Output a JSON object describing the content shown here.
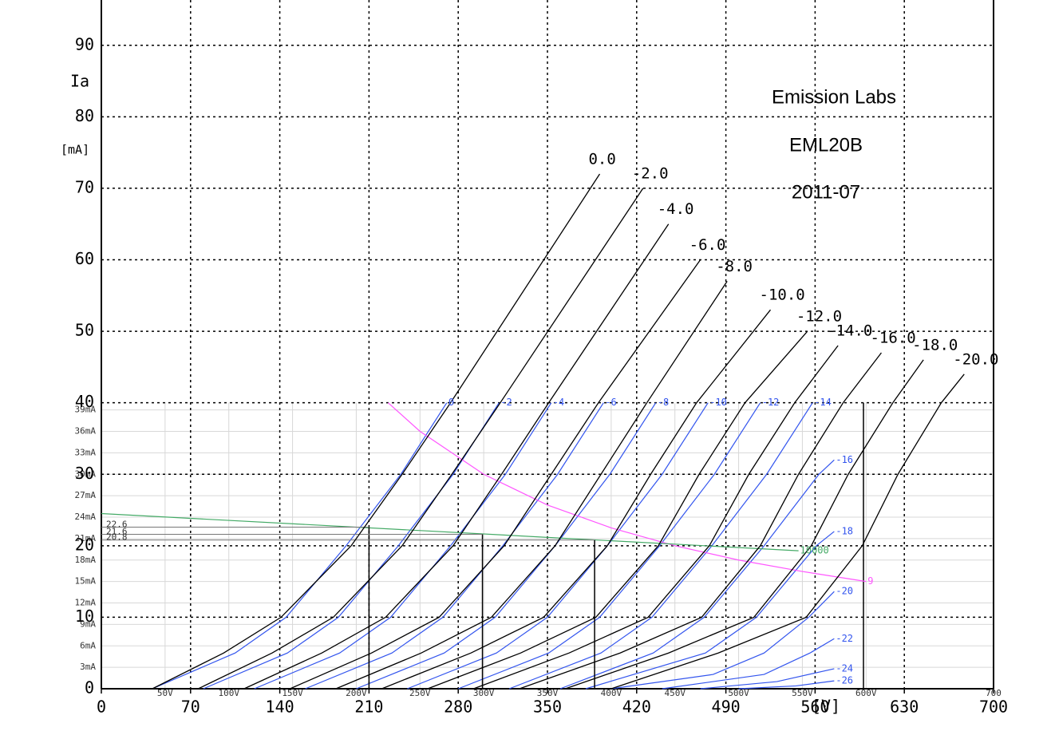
{
  "chart_data": [
    {
      "type": "line",
      "title": "Emission Labs",
      "subtitle": "EML20B",
      "date": "2011-07",
      "ylabel": "Ia",
      "yunit": "[mA]",
      "xunit": "[V]",
      "xlim": [
        0,
        700
      ],
      "ylim": [
        0,
        96
      ],
      "xticks": [
        0,
        70,
        140,
        210,
        280,
        350,
        420,
        490,
        560,
        630,
        700
      ],
      "yticks": [
        0,
        10,
        20,
        30,
        40,
        50,
        60,
        70,
        80,
        90
      ],
      "grid": true,
      "series": [
        {
          "name": "0.0",
          "color": "#000000",
          "x": [
            40,
            96,
            141,
            196,
            236,
            274,
            391
          ],
          "values": [
            0,
            5,
            10,
            20,
            30,
            40,
            72
          ]
        },
        {
          "name": "-2.0",
          "color": "#000000",
          "x": [
            76,
            134,
            182,
            236,
            275,
            313,
            425
          ],
          "values": [
            0,
            5,
            10,
            20,
            30,
            40,
            70
          ]
        },
        {
          "name": "-4.0",
          "color": "#000000",
          "x": [
            112,
            173,
            223,
            276,
            314,
            351,
            445
          ],
          "values": [
            0,
            5,
            10,
            20,
            30,
            40,
            65
          ]
        },
        {
          "name": "-6.0",
          "color": "#000000",
          "x": [
            148,
            212,
            265,
            316,
            353,
            390,
            470
          ],
          "values": [
            0,
            5,
            10,
            20,
            30,
            40,
            60
          ]
        },
        {
          "name": "-8.0",
          "color": "#000000",
          "x": [
            184,
            251,
            306,
            356,
            392,
            428,
            491
          ],
          "values": [
            0,
            5,
            10,
            20,
            30,
            40,
            57
          ]
        },
        {
          "name": "-10.0",
          "color": "#000000",
          "x": [
            220,
            290,
            347,
            397,
            431,
            467,
            525
          ],
          "values": [
            0,
            5,
            10,
            20,
            30,
            40,
            53
          ]
        },
        {
          "name": "-12.0",
          "color": "#000000",
          "x": [
            256,
            329,
            388,
            437,
            469,
            505,
            554
          ],
          "values": [
            0,
            5,
            10,
            20,
            30,
            40,
            50
          ]
        },
        {
          "name": "-14.0",
          "color": "#000000",
          "x": [
            292,
            367,
            429,
            477,
            508,
            544,
            578
          ],
          "values": [
            0,
            5,
            10,
            20,
            30,
            40,
            48
          ]
        },
        {
          "name": "-16.0",
          "color": "#000000",
          "x": [
            328,
            407,
            471,
            517,
            547,
            582,
            612
          ],
          "values": [
            0,
            5,
            10,
            20,
            30,
            40,
            47
          ]
        },
        {
          "name": "-18.0",
          "color": "#000000",
          "x": [
            364,
            445,
            512,
            557,
            586,
            621,
            645
          ],
          "values": [
            0,
            5,
            10,
            20,
            30,
            40,
            46
          ]
        },
        {
          "name": "-20.0",
          "color": "#000000",
          "x": [
            400,
            484,
            553,
            597,
            625,
            659,
            677
          ],
          "values": [
            0,
            5,
            10,
            20,
            30,
            40,
            44
          ]
        }
      ]
    },
    {
      "type": "line",
      "xlim": [
        0,
        700
      ],
      "ylim": [
        0,
        40
      ],
      "xticks": [
        {
          "value": 50,
          "label": "50V"
        },
        {
          "value": 100,
          "label": "100V"
        },
        {
          "value": 150,
          "label": "150V"
        },
        {
          "value": 200,
          "label": "200V"
        },
        {
          "value": 250,
          "label": "250V"
        },
        {
          "value": 300,
          "label": "300V"
        },
        {
          "value": 350,
          "label": "350V"
        },
        {
          "value": 400,
          "label": "400V"
        },
        {
          "value": 450,
          "label": "450V"
        },
        {
          "value": 500,
          "label": "500V"
        },
        {
          "value": 550,
          "label": "550V"
        },
        {
          "value": 600,
          "label": "600V"
        },
        {
          "value": 700,
          "label": "700"
        }
      ],
      "yticks": [
        {
          "value": 3,
          "label": "3mA"
        },
        {
          "value": 6,
          "label": "6mA"
        },
        {
          "value": 9,
          "label": "9mA"
        },
        {
          "value": 12,
          "label": "12mA"
        },
        {
          "value": 15,
          "label": "15mA"
        },
        {
          "value": 18,
          "label": "18mA"
        },
        {
          "value": 21,
          "label": "21mA"
        },
        {
          "value": 24,
          "label": "24mA"
        },
        {
          "value": 27,
          "label": "27mA"
        },
        {
          "value": 30,
          "label": "30mA"
        },
        {
          "value": 33,
          "label": "33mA"
        },
        {
          "value": 36,
          "label": "36mA"
        },
        {
          "value": 39,
          "label": "39mA"
        }
      ],
      "grid": true,
      "series": [
        {
          "name": "0",
          "color": "#3355ee",
          "x": [
            40,
            105,
            145,
            192,
            235,
            271
          ],
          "values": [
            0,
            5,
            10,
            20,
            30,
            40
          ]
        },
        {
          "name": "-2",
          "color": "#3355ee",
          "x": [
            80,
            146,
            186,
            233,
            276,
            312
          ],
          "values": [
            0,
            5,
            10,
            20,
            30,
            40
          ]
        },
        {
          "name": "-4",
          "color": "#3355ee",
          "x": [
            120,
            187,
            227,
            274,
            317,
            353
          ],
          "values": [
            0,
            5,
            10,
            20,
            30,
            40
          ]
        },
        {
          "name": "-6",
          "color": "#3355ee",
          "x": [
            160,
            228,
            268,
            315,
            358,
            394
          ],
          "values": [
            0,
            5,
            10,
            20,
            30,
            40
          ]
        },
        {
          "name": "-8",
          "color": "#3355ee",
          "x": [
            200,
            269,
            309,
            356,
            399,
            435
          ],
          "values": [
            0,
            5,
            10,
            20,
            30,
            40
          ]
        },
        {
          "name": "-10",
          "color": "#3355ee",
          "x": [
            240,
            310,
            350,
            397,
            440,
            476
          ],
          "values": [
            0,
            5,
            10,
            20,
            30,
            40
          ]
        },
        {
          "name": "-12",
          "color": "#3355ee",
          "x": [
            280,
            351,
            391,
            438,
            481,
            517
          ],
          "values": [
            0,
            5,
            10,
            20,
            30,
            40
          ]
        },
        {
          "name": "-14",
          "color": "#3355ee",
          "x": [
            320,
            392,
            432,
            479,
            522,
            558
          ],
          "values": [
            0,
            5,
            10,
            20,
            30,
            40
          ]
        },
        {
          "name": "-16",
          "color": "#3355ee",
          "x": [
            360,
            433,
            473,
            520,
            563,
            575
          ],
          "values": [
            0,
            5,
            10,
            20,
            30,
            32
          ]
        },
        {
          "name": "-18",
          "color": "#3355ee",
          "x": [
            380,
            474,
            514,
            561,
            575
          ],
          "values": [
            0,
            5,
            10,
            20,
            22
          ]
        },
        {
          "name": "-20",
          "color": "#3355ee",
          "x": [
            400,
            480,
            520,
            555,
            575
          ],
          "values": [
            0,
            2,
            5,
            10,
            13.6
          ]
        },
        {
          "name": "-22",
          "color": "#3355ee",
          "x": [
            440,
            520,
            556,
            575
          ],
          "values": [
            0,
            2,
            5,
            7
          ]
        },
        {
          "name": "-24",
          "color": "#3355ee",
          "x": [
            470,
            530,
            575
          ],
          "values": [
            0,
            1,
            2.8
          ]
        },
        {
          "name": "-26",
          "color": "#3355ee",
          "x": [
            500,
            545,
            575
          ],
          "values": [
            0,
            0.4,
            1.1
          ]
        },
        {
          "name": "9",
          "color": "#ff55ff",
          "x": [
            225,
            250,
            300,
            350,
            400,
            450,
            500,
            550,
            600
          ],
          "values": [
            40,
            36,
            30,
            25.7,
            22.5,
            20,
            18,
            16.4,
            15
          ]
        },
        {
          "name": "10000",
          "color": "#44aa66",
          "x": [
            0,
            547
          ],
          "values": [
            24.5,
            19.3
          ]
        }
      ],
      "operating_points": {
        "x": [
          210,
          299,
          387
        ],
        "values": [
          22.6,
          21.6,
          20.8
        ],
        "value_labels": [
          "22.6",
          "21.6",
          "20.8"
        ]
      }
    }
  ]
}
